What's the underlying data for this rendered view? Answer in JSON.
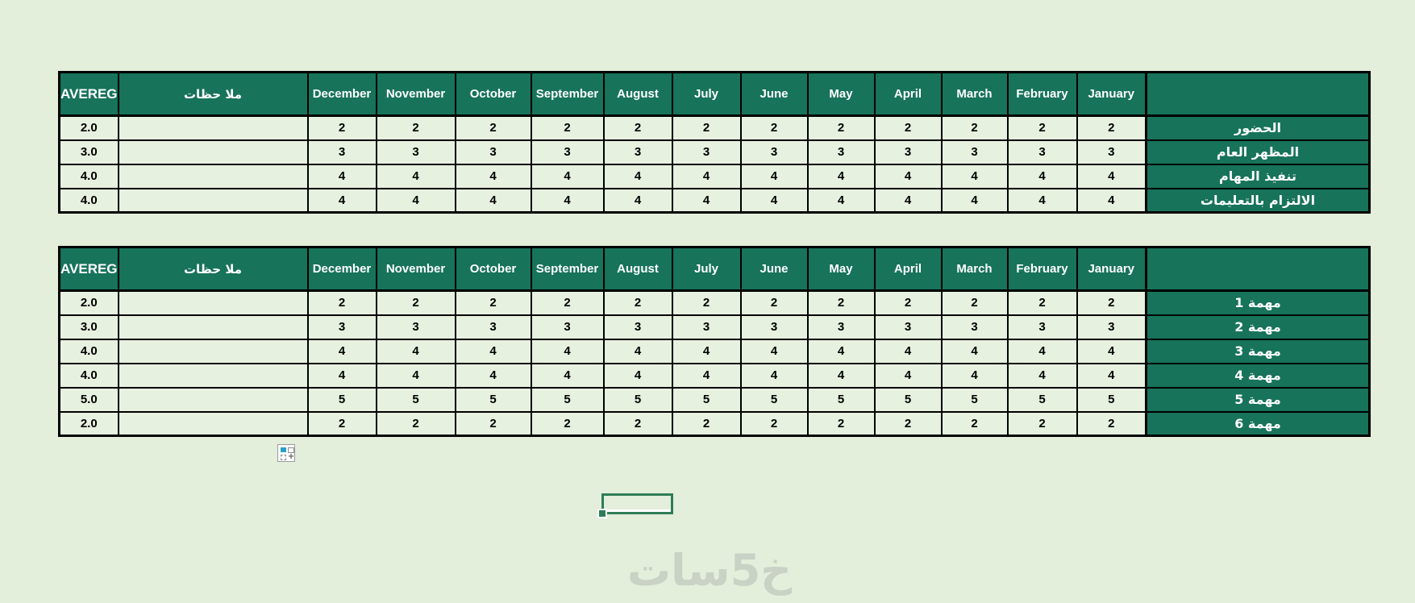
{
  "header_labels": {
    "avereg": "AVEREG",
    "notes": "ملا حظات",
    "row_label_header": ""
  },
  "months": [
    "December",
    "November",
    "October",
    "September",
    "August",
    "July",
    "June",
    "May",
    "April",
    "March",
    "February",
    "January"
  ],
  "table1": {
    "name": "evaluation-criteria-table",
    "rows": [
      {
        "avereg": "2.0",
        "notes": "",
        "monthly_value": "2",
        "label": "الحضور"
      },
      {
        "avereg": "3.0",
        "notes": "",
        "monthly_value": "3",
        "label": "المظهر العام"
      },
      {
        "avereg": "4.0",
        "notes": "",
        "monthly_value": "4",
        "label": "تنفيذ المهام"
      },
      {
        "avereg": "4.0",
        "notes": "",
        "monthly_value": "4",
        "label": "الالتزام بالتعليمات"
      }
    ]
  },
  "table2": {
    "name": "tasks-table",
    "rows": [
      {
        "avereg": "2.0",
        "notes": "",
        "monthly_value": "2",
        "label": "مهمة 1"
      },
      {
        "avereg": "3.0",
        "notes": "",
        "monthly_value": "3",
        "label": "مهمة 2"
      },
      {
        "avereg": "4.0",
        "notes": "",
        "monthly_value": "4",
        "label": "مهمة 3"
      },
      {
        "avereg": "4.0",
        "notes": "",
        "monthly_value": "4",
        "label": "مهمة 4"
      },
      {
        "avereg": "5.0",
        "notes": "",
        "monthly_value": "5",
        "label": "مهمة 5"
      },
      {
        "avereg": "2.0",
        "notes": "",
        "monthly_value": "2",
        "label": "مهمة 6"
      }
    ]
  },
  "paste_options": {
    "icon": "paste-options-icon",
    "plus_glyph": "+"
  },
  "watermark": "خ5سات",
  "colors": {
    "page_background": "#e3eedb",
    "header_green": "#17735a",
    "cell_background": "#e7f1e0",
    "grid_black": "#000000",
    "selection_green": "#2e7d57",
    "paste_icon_blue": "#2aa0c6",
    "watermark_gray": "#c9d2c5"
  }
}
